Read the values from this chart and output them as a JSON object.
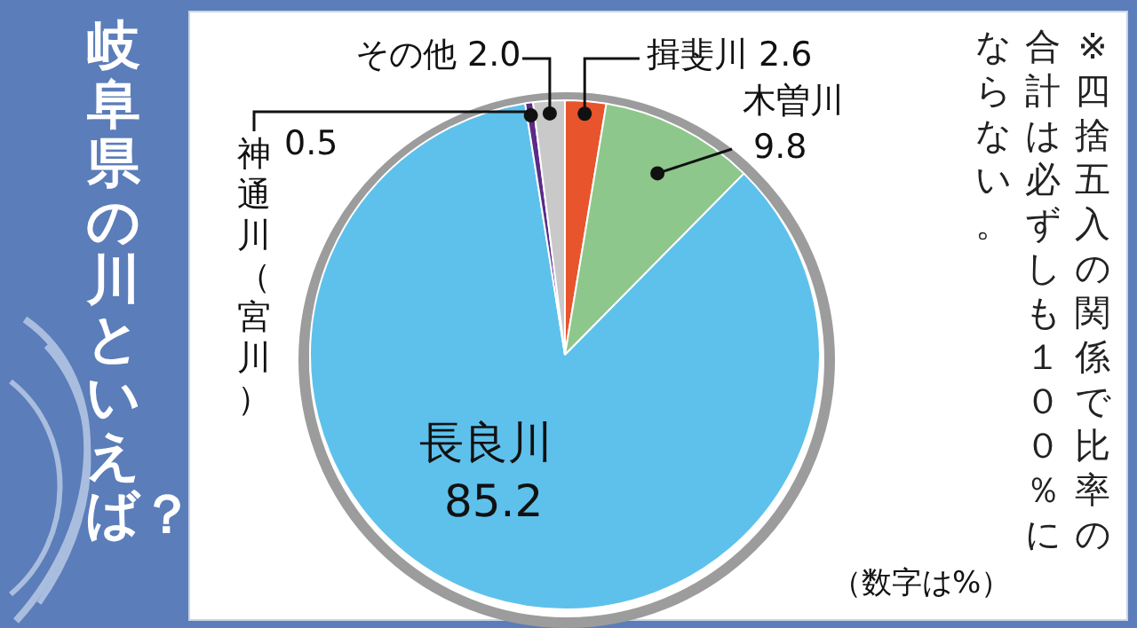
{
  "chart_data": {
    "type": "pie",
    "title": "岐阜県の川といえば？",
    "categories": [
      "揖斐川",
      "木曽川",
      "長良川",
      "神通川（宮川）",
      "その他"
    ],
    "values": [
      2.6,
      9.8,
      85.2,
      0.5,
      2.0
    ],
    "value_labels": [
      "2.6",
      "9.8",
      "85.2",
      "0.5",
      "2.0"
    ],
    "colors": [
      "#e8542c",
      "#8ec78c",
      "#5ec1ec",
      "#5a2b88",
      "#c9c9c9"
    ],
    "annotations": [
      "※四捨五入の関係で比率の合計は必ずしも１００％にならない。",
      "（数字は%）"
    ],
    "legend": false
  }
}
